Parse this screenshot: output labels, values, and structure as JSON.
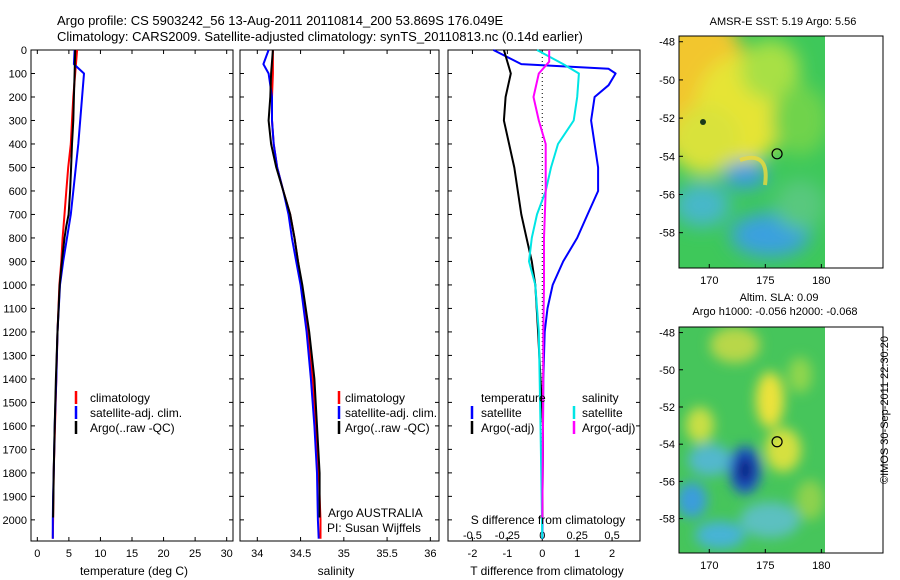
{
  "header": {
    "title_line1": "Argo profile: CS 5903242_56 13-Aug-2011 20110814_200 53.869S 176.049E",
    "title_line2": "Climatology: CARS2009. Satellite-adjusted climatology: synTS_20110813.nc (0.14d earlier)"
  },
  "colors": {
    "climatology": "#ff0000",
    "satellite": "#0000ff",
    "argo": "#000000",
    "satellite_salinity": "#00e5e5",
    "argo_salinity": "#ff00ff"
  },
  "legend": {
    "climatology": "climatology",
    "satellite_adj": "satellite-adj. clim.",
    "argo_raw": "Argo(..raw -QC)",
    "temperature_head": "temperature",
    "salinity_head": "salinity",
    "satellite": "satellite",
    "argo_adj": "Argo(-adj)"
  },
  "annotations": {
    "argo_country": "Argo AUSTRALIA",
    "pi": "PI: Susan Wijffels"
  },
  "footer": {
    "credit": "©IMOS 30-Sep-2011 22:30:20"
  },
  "chart_data": [
    {
      "type": "line",
      "panel": "temperature",
      "xlabel": "temperature (deg C)",
      "ylabel": "",
      "xlim": [
        -1,
        31
      ],
      "ylim": [
        2090,
        0
      ],
      "xticks": [
        0,
        5,
        10,
        15,
        20,
        25,
        30
      ],
      "yticks": [
        0,
        100,
        200,
        300,
        400,
        500,
        600,
        700,
        800,
        900,
        1000,
        1100,
        1200,
        1300,
        1400,
        1500,
        1600,
        1700,
        1800,
        1900,
        2000
      ],
      "series": [
        {
          "name": "climatology",
          "color": "#ff0000",
          "x": [
            6.3,
            6.0,
            5.7,
            5.5,
            5.3,
            4.9,
            4.6,
            4.3,
            4.0,
            3.8,
            3.5,
            3.2,
            3.0,
            2.8,
            2.6,
            2.5,
            2.45
          ],
          "y": [
            0,
            100,
            200,
            300,
            400,
            500,
            600,
            700,
            800,
            900,
            1000,
            1200,
            1400,
            1600,
            1800,
            2000,
            2080
          ]
        },
        {
          "name": "satellite-adj. clim.",
          "color": "#0000ff",
          "x": [
            5.9,
            5.8,
            7.4,
            7.1,
            6.8,
            6.5,
            6.1,
            5.7,
            5.3,
            4.7,
            4.1,
            3.6,
            3.2,
            3.0,
            2.75,
            2.6,
            2.5,
            2.45,
            2.45
          ],
          "y": [
            0,
            60,
            100,
            200,
            300,
            400,
            500,
            600,
            700,
            800,
            900,
            1000,
            1200,
            1400,
            1600,
            1800,
            1900,
            2000,
            2080
          ]
        },
        {
          "name": "Argo(..raw -QC)",
          "color": "#000000",
          "x": [
            6.0,
            5.9,
            5.8,
            5.7,
            5.5,
            5.35,
            5.2,
            4.95,
            4.6,
            4.3,
            3.9,
            3.55,
            3.2,
            2.95,
            2.75,
            2.6,
            2.5
          ],
          "y": [
            0,
            100,
            200,
            300,
            400,
            500,
            600,
            700,
            750,
            800,
            900,
            1000,
            1200,
            1400,
            1600,
            1800,
            1990
          ]
        }
      ]
    },
    {
      "type": "line",
      "panel": "salinity",
      "xlabel": "salinity",
      "ylabel": "",
      "xlim": [
        33.8,
        36.1
      ],
      "ylim": [
        2090,
        0
      ],
      "xticks": [
        34,
        34.5,
        35,
        35.5,
        36
      ],
      "xticklabels": [
        "34",
        "34.5",
        "35",
        "35.5",
        "36"
      ],
      "series": [
        {
          "name": "climatology",
          "color": "#ff0000",
          "x": [
            34.18,
            34.18,
            34.17,
            34.17,
            34.19,
            34.23,
            34.3,
            34.38,
            34.43,
            34.47,
            34.51,
            34.58,
            34.64,
            34.68,
            34.71,
            34.73,
            34.73
          ],
          "y": [
            0,
            100,
            200,
            300,
            400,
            500,
            600,
            700,
            800,
            900,
            1000,
            1200,
            1400,
            1600,
            1800,
            2000,
            2080
          ]
        },
        {
          "name": "satellite-adj. clim.",
          "color": "#0000ff",
          "x": [
            34.13,
            34.07,
            34.13,
            34.17,
            34.17,
            34.19,
            34.23,
            34.3,
            34.36,
            34.4,
            34.45,
            34.5,
            34.57,
            34.62,
            34.66,
            34.69,
            34.7,
            34.71
          ],
          "y": [
            0,
            60,
            100,
            200,
            300,
            400,
            500,
            600,
            700,
            800,
            900,
            1000,
            1200,
            1400,
            1600,
            1800,
            2000,
            2080
          ]
        },
        {
          "name": "Argo(..raw -QC)",
          "color": "#000000",
          "x": [
            34.18,
            34.16,
            34.15,
            34.13,
            34.16,
            34.22,
            34.3,
            34.38,
            34.43,
            34.47,
            34.52,
            34.6,
            34.66,
            34.69,
            34.72,
            34.72
          ],
          "y": [
            0,
            100,
            200,
            300,
            400,
            500,
            600,
            700,
            800,
            900,
            1000,
            1200,
            1400,
            1600,
            1800,
            1990
          ]
        }
      ]
    },
    {
      "type": "line",
      "panel": "differences",
      "xlabel": "T difference from climatology",
      "xlabel_top": "S difference from climatology",
      "xlim": [
        -2.7,
        2.8
      ],
      "ylim": [
        2090,
        0
      ],
      "xticks": [
        -2,
        -1,
        0,
        1,
        2
      ],
      "xticklabels": [
        "-2",
        "-1",
        "0",
        "1",
        "2"
      ],
      "sticks_at": [
        -2,
        -1,
        0,
        1,
        2
      ],
      "sticklabels": [
        "-0.5",
        "-0.25",
        "0",
        "0.25",
        "0.5"
      ],
      "series": [
        {
          "name": "temperature satellite",
          "color": "#0000ff",
          "x": [
            -1.4,
            -0.6,
            1.9,
            2.1,
            1.9,
            1.5,
            1.4,
            1.5,
            1.6,
            1.6,
            1.3,
            1.0,
            0.6,
            0.3,
            0.15,
            0.07,
            0.03,
            0.02,
            0.01,
            0.0
          ],
          "y": [
            0,
            60,
            80,
            100,
            150,
            200,
            300,
            400,
            500,
            600,
            700,
            800,
            900,
            1000,
            1100,
            1200,
            1400,
            1600,
            1800,
            2080
          ]
        },
        {
          "name": "temperature Argo(-adj)",
          "color": "#000000",
          "x": [
            -1.1,
            -0.9,
            -1.05,
            -1.1,
            -0.95,
            -0.8,
            -0.7,
            -0.6,
            -0.45,
            -0.3,
            -0.2,
            -0.12,
            -0.05,
            0.02,
            0.0
          ],
          "y": [
            0,
            100,
            200,
            300,
            400,
            500,
            600,
            700,
            800,
            900,
            1000,
            1200,
            1400,
            1600,
            1990
          ]
        },
        {
          "name": "salinity satellite",
          "color": "#00e5e5",
          "x": [
            -0.15,
            0.6,
            1.05,
            1.0,
            0.9,
            0.45,
            0.25,
            0.1,
            -0.15,
            -0.3,
            -0.38,
            -0.2,
            -0.1,
            -0.05,
            0.0
          ],
          "y": [
            0,
            60,
            100,
            200,
            300,
            400,
            500,
            600,
            700,
            800,
            900,
            1000,
            1200,
            1600,
            2080
          ]
        },
        {
          "name": "salinity Argo(-adj)",
          "color": "#ff00ff",
          "x": [
            0.2,
            0.2,
            -0.1,
            -0.25,
            -0.1,
            0.1,
            0.1,
            0.05,
            0.05,
            0.03,
            0.02,
            0.0
          ],
          "y": [
            0,
            50,
            100,
            200,
            300,
            400,
            600,
            800,
            1000,
            1200,
            1600,
            1990
          ]
        }
      ]
    }
  ],
  "maps": [
    {
      "title_lines": [
        "AMSR-E SST: 5.19 Argo: 5.56"
      ],
      "lon_ticks": [
        170,
        175,
        180
      ],
      "lat_ticks": [
        -48,
        -50,
        -52,
        -54,
        -56,
        -58
      ],
      "float_marker": {
        "lon": 176.05,
        "lat": -53.87
      }
    },
    {
      "title_lines": [
        "Altim. SLA: 0.09",
        "Argo h1000: -0.056 h2000: -0.068"
      ],
      "lon_ticks": [
        170,
        175,
        180
      ],
      "lat_ticks": [
        -48,
        -50,
        -52,
        -54,
        -56,
        -58
      ],
      "float_marker": {
        "lon": 176.05,
        "lat": -53.87
      }
    }
  ]
}
